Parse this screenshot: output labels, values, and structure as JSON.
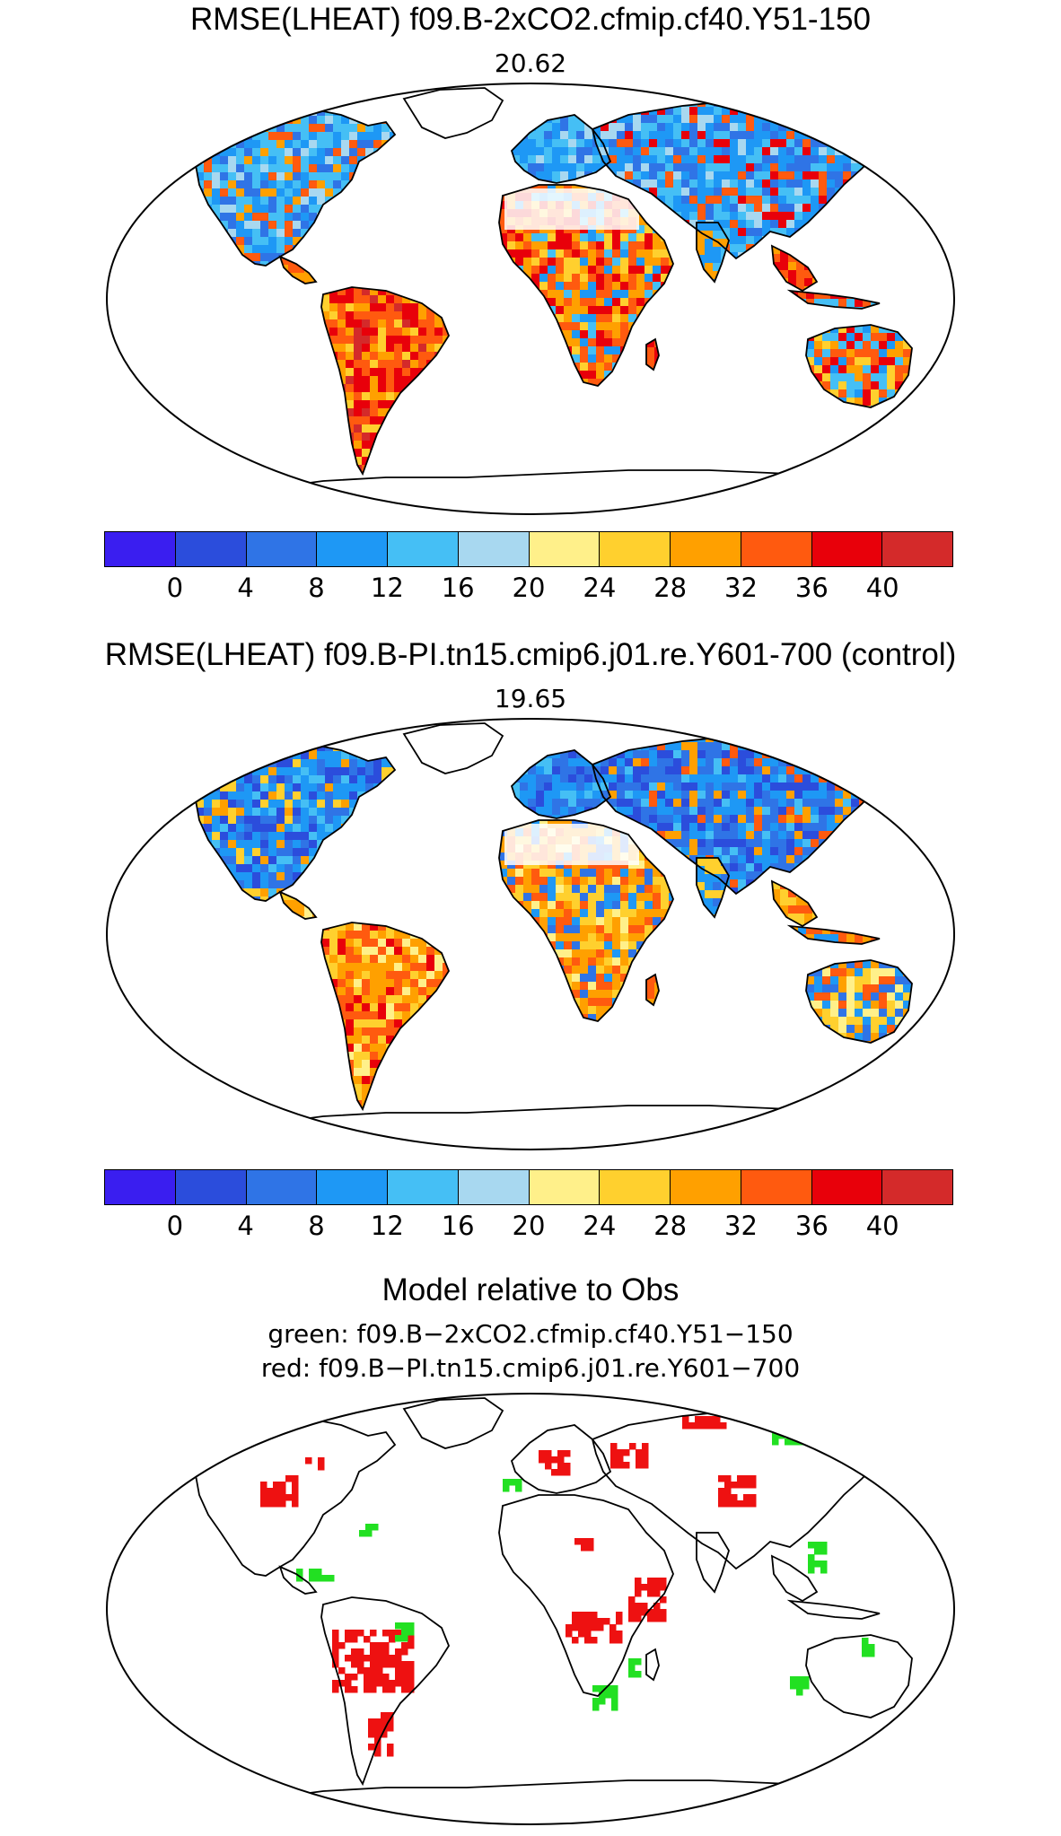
{
  "panel1": {
    "title": "RMSE(LHEAT) f09.B-2xCO2.cfmip.cf40.Y51-150",
    "value": "20.62"
  },
  "panel2": {
    "title": "RMSE(LHEAT) f09.B-PI.tn15.cmip6.j01.re.Y601-700 (control)",
    "value": "19.65"
  },
  "panel3": {
    "title": "Model relative to Obs",
    "line_green": "green: f09.B−2xCO2.cfmip.cf40.Y51−150",
    "line_red": "red: f09.B−PI.tn15.cmip6.j01.re.Y601−700"
  },
  "colorbar": {
    "colors": [
      "#3a1ef0",
      "#2b4ddc",
      "#2f74e6",
      "#1e98f5",
      "#45bff5",
      "#a8d8f0",
      "#fff08a",
      "#ffd02e",
      "#ffa000",
      "#ff5a0f",
      "#e8000a",
      "#d42a2a"
    ],
    "tick_labels": [
      "0",
      "4",
      "8",
      "12",
      "16",
      "20",
      "24",
      "28",
      "32",
      "36",
      "40"
    ]
  },
  "relative_colors": {
    "green": "#22e022",
    "red": "#ee1111"
  }
}
